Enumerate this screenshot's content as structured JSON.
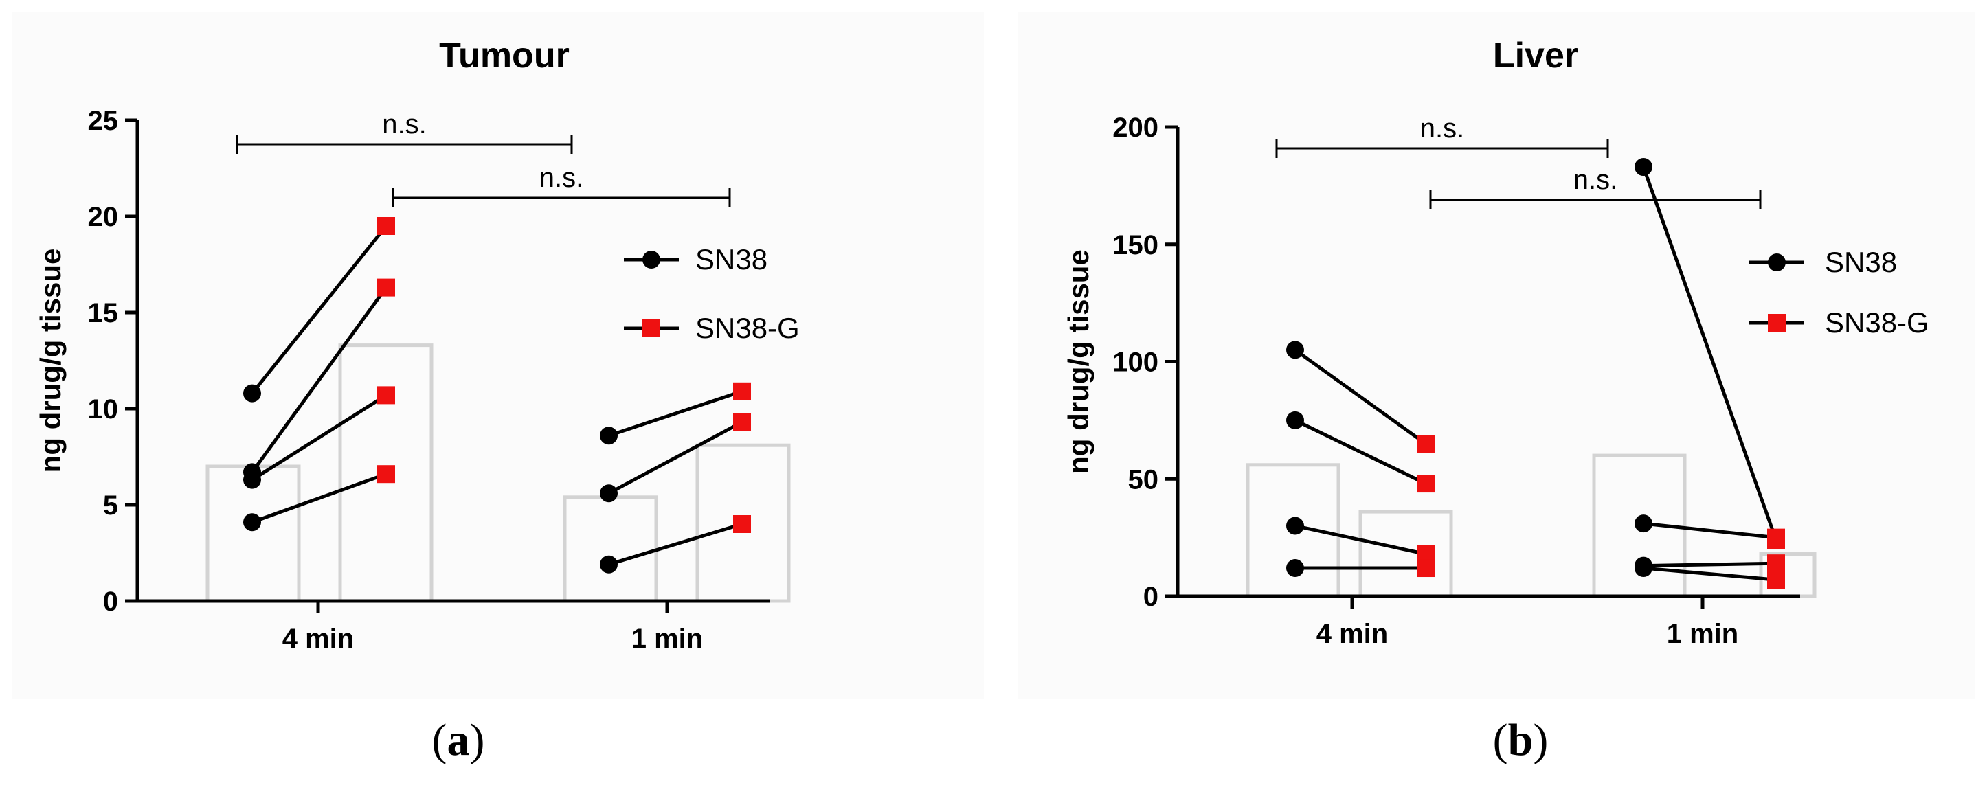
{
  "chart_data": [
    {
      "type": "paired-bar-dot",
      "title": "Tumour",
      "ylabel": "ng drug/g tissue",
      "xlabel": "",
      "ylim": [
        0,
        25
      ],
      "yticks": [
        0,
        5,
        10,
        15,
        20,
        25
      ],
      "categories": [
        "4 min",
        "1 min"
      ],
      "legend": {
        "position": "top-right",
        "entries": [
          "SN38",
          "SN38-G"
        ]
      },
      "series": [
        {
          "name": "SN38",
          "marker": "circle",
          "color": "#000000",
          "means": [
            7.0,
            5.4
          ]
        },
        {
          "name": "SN38-G",
          "marker": "square",
          "color": "#ee1111",
          "means": [
            13.3,
            8.1
          ]
        }
      ],
      "pairs": [
        {
          "category": "4 min",
          "SN38": 10.8,
          "SN38-G": 19.5
        },
        {
          "category": "4 min",
          "SN38": 6.7,
          "SN38-G": 16.3
        },
        {
          "category": "4 min",
          "SN38": 6.3,
          "SN38-G": 10.7
        },
        {
          "category": "4 min",
          "SN38": 4.1,
          "SN38-G": 6.6
        },
        {
          "category": "1 min",
          "SN38": 8.6,
          "SN38-G": 10.9
        },
        {
          "category": "1 min",
          "SN38": 5.6,
          "SN38-G": 9.3
        },
        {
          "category": "1 min",
          "SN38": 1.9,
          "SN38-G": 4.0
        }
      ],
      "annotations": [
        {
          "text": "n.s.",
          "from": "4 min SN38",
          "to": "1 min SN38"
        },
        {
          "text": "n.s.",
          "from": "4 min SN38-G",
          "to": "1 min SN38-G"
        }
      ],
      "caption": {
        "open": "(",
        "label": "a",
        "close": ")"
      }
    },
    {
      "type": "paired-bar-dot",
      "title": "Liver",
      "ylabel": "ng drug/g tissue",
      "xlabel": "",
      "ylim": [
        0,
        200
      ],
      "yticks": [
        0,
        50,
        100,
        150,
        200
      ],
      "categories": [
        "4 min",
        "1 min"
      ],
      "legend": {
        "position": "top-right",
        "entries": [
          "SN38",
          "SN38-G"
        ]
      },
      "series": [
        {
          "name": "SN38",
          "marker": "circle",
          "color": "#000000",
          "means": [
            56,
            60
          ]
        },
        {
          "name": "SN38-G",
          "marker": "square",
          "color": "#ee1111",
          "means": [
            36,
            18
          ]
        }
      ],
      "pairs": [
        {
          "category": "4 min",
          "SN38": 105,
          "SN38-G": 65
        },
        {
          "category": "4 min",
          "SN38": 75,
          "SN38-G": 48
        },
        {
          "category": "4 min",
          "SN38": 30,
          "SN38-G": 18
        },
        {
          "category": "4 min",
          "SN38": 12,
          "SN38-G": 12
        },
        {
          "category": "1 min",
          "SN38": 183,
          "SN38-G": 24
        },
        {
          "category": "1 min",
          "SN38": 31,
          "SN38-G": 25
        },
        {
          "category": "1 min",
          "SN38": 13,
          "SN38-G": 14
        },
        {
          "category": "1 min",
          "SN38": 12,
          "SN38-G": 7
        }
      ],
      "annotations": [
        {
          "text": "n.s.",
          "from": "4 min SN38",
          "to": "1 min SN38"
        },
        {
          "text": "n.s.",
          "from": "4 min SN38-G",
          "to": "1 min SN38-G"
        }
      ],
      "caption": {
        "open": "(",
        "label": "b",
        "close": ")"
      }
    }
  ]
}
